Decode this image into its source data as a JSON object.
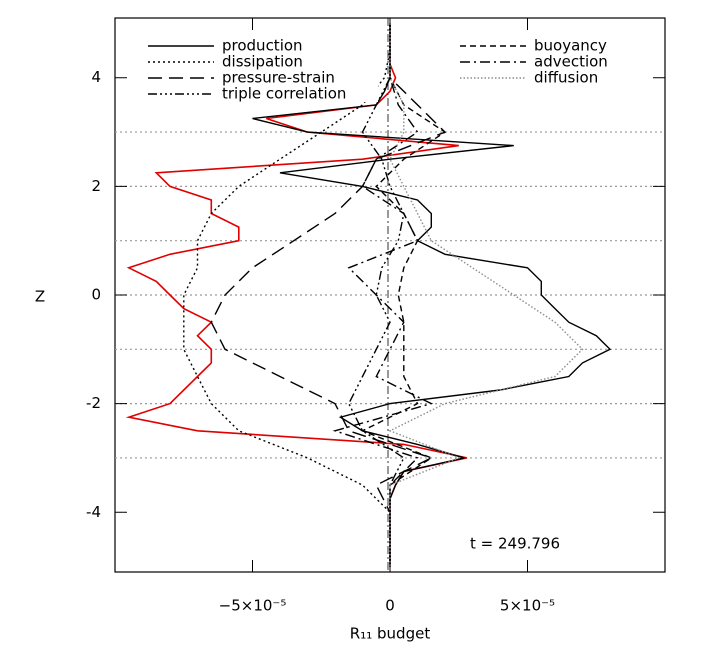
{
  "chart_data": {
    "type": "line",
    "xlabel": "R₁₁ budget",
    "ylabel": "Z",
    "annotation": "t = 249.796",
    "xlim": [
      -0.0001,
      0.0001
    ],
    "ylim": [
      -5.1,
      5.1
    ],
    "xticks": [
      {
        "value": -5e-05,
        "label": "−5×10⁻⁵"
      },
      0,
      {
        "value": 5e-05,
        "label": "5×10⁻⁵"
      }
    ],
    "yticks": [
      -4,
      -2,
      0,
      2,
      4
    ],
    "hlines": [
      3,
      2,
      1,
      0,
      -1,
      -2,
      -3
    ],
    "series": [
      {
        "color": "#e00000",
        "dash": "none",
        "z": [
          5,
          4.75,
          4.5,
          4.25,
          4,
          3.75,
          3.5,
          3.25,
          3,
          2.75,
          2.5,
          2.25,
          2,
          1.75,
          1.5,
          1.25,
          1,
          0.75,
          0.5,
          0.25,
          0,
          -0.25,
          -0.5,
          -0.75,
          -1,
          -1.25,
          -1.5,
          -1.75,
          -2,
          -2.25,
          -2.5,
          -2.75,
          -3,
          -3.25,
          -3.5,
          -3.75,
          -4,
          -4.25,
          -4.5,
          -4.75,
          -5
        ],
        "values": [
          0,
          0,
          0,
          0,
          2e-06,
          0,
          -5e-06,
          -4.5e-05,
          -3e-05,
          2.5e-05,
          -1e-05,
          -8.5e-05,
          -8e-05,
          -6.5e-05,
          -6.5e-05,
          -5.5e-05,
          -5.5e-05,
          -8e-05,
          -9.5e-05,
          -8.5e-05,
          -8e-05,
          -7.5e-05,
          -6.5e-05,
          -7e-05,
          -6.5e-05,
          -6.5e-05,
          -7e-05,
          -7.5e-05,
          -8e-05,
          -9.5e-05,
          -7e-05,
          5e-06,
          2.8e-05,
          5e-06,
          2e-06,
          0,
          0,
          0,
          0,
          0,
          0
        ]
      },
      {
        "name": "production",
        "color": "#000000",
        "dash": "none",
        "z": [
          5,
          4.75,
          4.5,
          4.25,
          4,
          3.75,
          3.5,
          3.25,
          3,
          2.75,
          2.5,
          2.25,
          2,
          1.75,
          1.5,
          1.25,
          1,
          0.75,
          0.5,
          0.25,
          0,
          -0.25,
          -0.5,
          -0.75,
          -1,
          -1.25,
          -1.5,
          -1.75,
          -2,
          -2.25,
          -2.5,
          -2.75,
          -3,
          -3.25,
          -3.5,
          -3.75,
          -4,
          -4.25,
          -4.5,
          -4.75,
          -5
        ],
        "values": [
          0,
          0,
          0,
          0,
          0,
          -2e-06,
          -5e-06,
          -5e-05,
          -3e-05,
          4.5e-05,
          0,
          -4e-05,
          -1e-05,
          1e-05,
          1.5e-05,
          1.5e-05,
          1e-05,
          2e-05,
          5e-05,
          5.5e-05,
          5.5e-05,
          6e-05,
          6.5e-05,
          7.5e-05,
          8e-05,
          7e-05,
          6.5e-05,
          4e-05,
          0,
          -1.8e-05,
          -1e-05,
          1e-05,
          2.7e-05,
          5e-06,
          2e-06,
          0,
          0,
          0,
          0,
          0,
          0
        ]
      },
      {
        "name": "dissipation",
        "color": "#000000",
        "dash": "2,3",
        "z": [
          5,
          4.5,
          4,
          3.5,
          3,
          2.5,
          2,
          1.5,
          1,
          0.5,
          0,
          -0.5,
          -1,
          -1.5,
          -2,
          -2.5,
          -3,
          -3.5,
          -4,
          -4.5,
          -5
        ],
        "values": [
          0,
          0,
          -2e-06,
          -1e-05,
          -2.5e-05,
          -4e-05,
          -5.5e-05,
          -6.5e-05,
          -7e-05,
          -7e-05,
          -7.5e-05,
          -7.5e-05,
          -7.5e-05,
          -7e-05,
          -6.5e-05,
          -5.5e-05,
          -3e-05,
          -1e-05,
          0,
          0,
          0
        ]
      },
      {
        "name": "pressure-strain",
        "color": "#000000",
        "dash": "14,7",
        "z": [
          5,
          4.5,
          4,
          3.5,
          3,
          2.5,
          2,
          1.5,
          1,
          0.5,
          0,
          -0.5,
          -1,
          -1.5,
          -2,
          -2.5,
          -3,
          -3.5,
          -4,
          -4.5,
          -5
        ],
        "values": [
          0,
          0,
          0,
          1e-05,
          2e-05,
          -5e-06,
          -1e-05,
          -2e-05,
          -3.5e-05,
          -5e-05,
          -6e-05,
          -6.5e-05,
          -6e-05,
          -4e-05,
          -2e-05,
          -1.5e-05,
          1.5e-05,
          -5e-06,
          0,
          0,
          0
        ]
      },
      {
        "name": "triple correlation",
        "color": "#000000",
        "dash": "9,3,2,3,2,3,2,3",
        "z": [
          5,
          4.5,
          4,
          3.5,
          3,
          2.5,
          2,
          1.5,
          1,
          0.5,
          0,
          -0.5,
          -1,
          -1.5,
          -2,
          -2.5,
          -3,
          -3.5,
          -4,
          -4.5,
          -5
        ],
        "values": [
          0,
          0,
          0,
          -5e-06,
          -1e-05,
          -3e-06,
          0,
          5e-06,
          3e-06,
          -3e-06,
          -5e-06,
          0,
          -5e-06,
          -1e-05,
          -1.5e-05,
          -1e-05,
          5e-06,
          0,
          0,
          0,
          0
        ]
      },
      {
        "name": "buoyancy",
        "color": "#000000",
        "dash": "6,4",
        "z": [
          5,
          4.5,
          4,
          3.5,
          3,
          2.5,
          2,
          1.5,
          1,
          0.5,
          0,
          -0.5,
          -1,
          -1.5,
          -2,
          -2.5,
          -3,
          -3.5,
          -4,
          -4.5,
          -5
        ],
        "values": [
          0,
          0,
          0,
          5e-06,
          2e-05,
          5e-06,
          -5e-06,
          5e-06,
          1e-05,
          5e-06,
          3e-06,
          5e-06,
          5e-06,
          5e-06,
          1e-05,
          -1e-05,
          1.5e-05,
          0,
          0,
          0,
          0
        ]
      },
      {
        "name": "advection",
        "color": "#000000",
        "dash": "10,4,2,4",
        "z": [
          5,
          4.5,
          4,
          3.5,
          3,
          2.5,
          2,
          1.5,
          1,
          0.5,
          0,
          -0.5,
          -1,
          -1.5,
          -2,
          -2.5,
          -3,
          -3.5,
          -4,
          -4.5,
          -5
        ],
        "values": [
          0,
          0,
          0,
          3e-06,
          1e-05,
          -5e-06,
          -1e-05,
          5e-06,
          1e-05,
          -1.5e-05,
          -5e-06,
          5e-06,
          0,
          -5e-06,
          1.5e-05,
          -2e-05,
          1e-05,
          0,
          0,
          0,
          0
        ]
      },
      {
        "name": "diffusion",
        "color": "#8c8c8c",
        "dash": "1.5,2",
        "z": [
          5,
          4.5,
          4,
          3.5,
          3,
          2.5,
          2,
          1.5,
          1,
          0.5,
          0,
          -0.5,
          -1,
          -1.5,
          -2,
          -2.5,
          -3,
          -3.5,
          -4,
          -4.5,
          -5
        ],
        "values": [
          0,
          0,
          0,
          5e-06,
          5e-06,
          0,
          5e-06,
          1e-05,
          1.5e-05,
          3e-05,
          4.5e-05,
          6e-05,
          7e-05,
          6e-05,
          2e-05,
          0,
          2.5e-05,
          0,
          0,
          0,
          0
        ]
      }
    ]
  }
}
